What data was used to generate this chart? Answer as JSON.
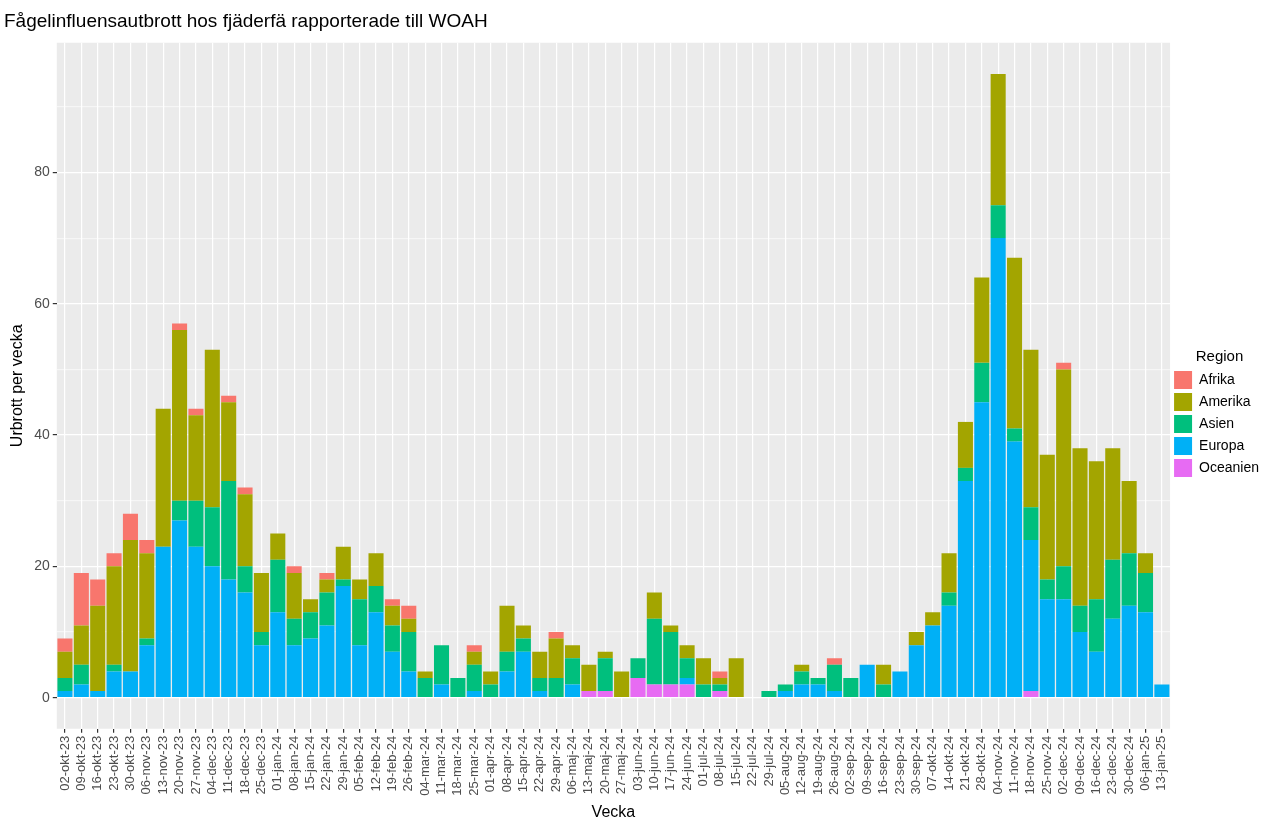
{
  "chart_data": {
    "type": "bar",
    "title": "Fågelinfluensautbrott hos fjäderfä rapporterade till WOAH",
    "xlabel": "Vecka",
    "ylabel": "Urbrott per vecka",
    "legend_title": "Region",
    "legend": "right",
    "grid": true,
    "stacked": true,
    "categories": [
      "02-okt-23",
      "09-okt-23",
      "16-okt-23",
      "23-okt-23",
      "30-okt-23",
      "06-nov-23",
      "13-nov-23",
      "20-nov-23",
      "27-nov-23",
      "04-dec-23",
      "11-dec-23",
      "18-dec-23",
      "25-dec-23",
      "01-jan-24",
      "08-jan-24",
      "15-jan-24",
      "22-jan-24",
      "29-jan-24",
      "05-feb-24",
      "12-feb-24",
      "19-feb-24",
      "26-feb-24",
      "04-mar-24",
      "11-mar-24",
      "18-mar-24",
      "25-mar-24",
      "01-apr-24",
      "08-apr-24",
      "15-apr-24",
      "22-apr-24",
      "29-apr-24",
      "06-maj-24",
      "13-maj-24",
      "20-maj-24",
      "27-maj-24",
      "03-jun-24",
      "10-jun-24",
      "17-jun-24",
      "24-jun-24",
      "01-jul-24",
      "08-jul-24",
      "15-jul-24",
      "22-jul-24",
      "29-jul-24",
      "05-aug-24",
      "12-aug-24",
      "19-aug-24",
      "26-aug-24",
      "02-sep-24",
      "09-sep-24",
      "16-sep-24",
      "23-sep-24",
      "30-sep-24",
      "07-okt-24",
      "14-okt-24",
      "21-okt-24",
      "28-okt-24",
      "04-nov-24",
      "11-nov-24",
      "18-nov-24",
      "25-nov-24",
      "02-dec-24",
      "09-dec-24",
      "16-dec-24",
      "23-dec-24",
      "30-dec-24",
      "06-jan-25",
      "13-jan-25"
    ],
    "ylim": [
      -4.75,
      99.75
    ],
    "yticks": [
      0,
      {
        "value": 10,
        "label": null
      },
      20,
      {
        "value": 30,
        "label": null
      },
      40,
      {
        "value": 50,
        "label": null
      },
      60,
      {
        "value": 70,
        "label": null
      },
      80,
      {
        "value": 90,
        "label": null
      }
    ],
    "series": [
      {
        "name": "Oceanien",
        "color": "#e76bf3",
        "values": [
          0,
          0,
          0,
          0,
          0,
          0,
          0,
          0,
          0,
          0,
          0,
          0,
          0,
          0,
          0,
          0,
          0,
          0,
          0,
          0,
          0,
          0,
          0,
          0,
          0,
          0,
          0,
          0,
          0,
          0,
          0,
          0,
          1,
          1,
          0,
          3,
          2,
          2,
          2,
          0,
          1,
          0,
          0,
          0,
          0,
          0,
          0,
          0,
          0,
          0,
          0,
          0,
          0,
          0,
          0,
          0,
          0,
          0,
          0,
          1,
          0,
          0,
          0,
          0,
          0,
          0,
          0,
          0
        ]
      },
      {
        "name": "Europa",
        "color": "#00b0f6",
        "values": [
          1,
          2,
          1,
          4,
          4,
          8,
          23,
          27,
          23,
          20,
          18,
          16,
          8,
          13,
          8,
          9,
          11,
          17,
          8,
          13,
          7,
          4,
          0,
          2,
          0,
          1,
          0,
          4,
          7,
          1,
          0,
          2,
          0,
          0,
          0,
          0,
          0,
          0,
          1,
          0,
          0,
          0,
          0,
          0,
          1,
          2,
          2,
          1,
          0,
          5,
          0,
          4,
          8,
          11,
          14,
          33,
          45,
          70,
          39,
          23,
          15,
          15,
          10,
          7,
          12,
          14,
          13,
          2
        ]
      },
      {
        "name": "Asien",
        "color": "#00bf7d",
        "values": [
          2,
          3,
          0,
          1,
          0,
          1,
          0,
          3,
          7,
          9,
          15,
          4,
          2,
          8,
          4,
          4,
          5,
          1,
          7,
          4,
          4,
          6,
          3,
          6,
          3,
          4,
          2,
          3,
          2,
          2,
          3,
          4,
          0,
          5,
          0,
          3,
          10,
          8,
          3,
          2,
          1,
          0,
          0,
          1,
          1,
          2,
          1,
          4,
          3,
          0,
          2,
          0,
          0,
          0,
          2,
          2,
          6,
          5,
          2,
          5,
          3,
          5,
          4,
          8,
          9,
          8,
          6,
          0
        ]
      },
      {
        "name": "Amerika",
        "color": "#a3a500",
        "values": [
          4,
          6,
          13,
          15,
          20,
          13,
          21,
          26,
          13,
          24,
          12,
          11,
          9,
          4,
          7,
          2,
          2,
          5,
          3,
          5,
          3,
          2,
          1,
          0,
          0,
          2,
          2,
          7,
          2,
          4,
          6,
          2,
          4,
          1,
          4,
          0,
          4,
          1,
          2,
          4,
          1,
          6,
          0,
          0,
          0,
          1,
          0,
          0,
          0,
          0,
          3,
          0,
          2,
          2,
          6,
          7,
          13,
          20,
          26,
          24,
          19,
          30,
          24,
          21,
          17,
          11,
          3,
          0
        ]
      },
      {
        "name": "Afrika",
        "color": "#f8766d",
        "values": [
          2,
          8,
          4,
          2,
          4,
          2,
          0,
          1,
          1,
          0,
          1,
          1,
          0,
          0,
          1,
          0,
          1,
          0,
          0,
          0,
          1,
          2,
          0,
          0,
          0,
          1,
          0,
          0,
          0,
          0,
          1,
          0,
          0,
          0,
          0,
          0,
          0,
          0,
          0,
          0,
          1,
          0,
          0,
          0,
          0,
          0,
          0,
          1,
          0,
          0,
          0,
          0,
          0,
          0,
          0,
          0,
          0,
          0,
          0,
          0,
          0,
          1,
          0,
          0,
          0,
          0,
          0,
          0
        ]
      }
    ]
  }
}
